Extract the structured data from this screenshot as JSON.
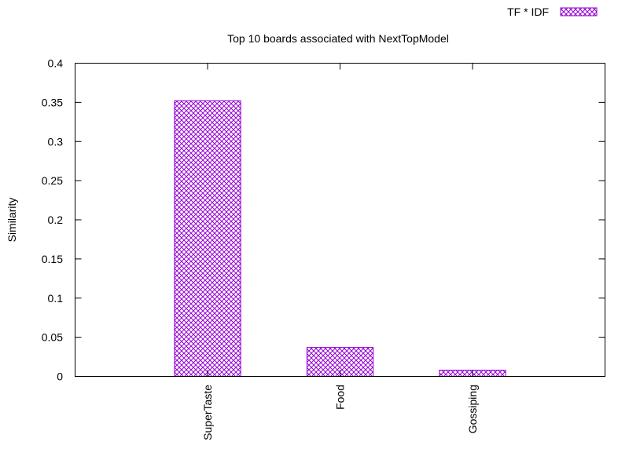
{
  "chart_data": {
    "type": "bar",
    "title": "Top 10 boards associated with NextTopModel",
    "xlabel": "",
    "ylabel": "Similarity",
    "categories": [
      "SuperTaste",
      "Food",
      "Gossiping"
    ],
    "series": [
      {
        "name": "TF * IDF",
        "values": [
          0.352,
          0.037,
          0.008
        ]
      }
    ],
    "ylim": [
      0,
      0.4
    ],
    "yticks": [
      0,
      0.05,
      0.1,
      0.15,
      0.2,
      0.25,
      0.3,
      0.35,
      0.4
    ],
    "ytick_labels": [
      "0",
      "0.05",
      "0.1",
      "0.15",
      "0.2",
      "0.25",
      "0.3",
      "0.35",
      "0.4"
    ],
    "grid": false,
    "legend_position": "top-right",
    "bar_color": "#9400d3",
    "bar_pattern": "crosshatch"
  }
}
